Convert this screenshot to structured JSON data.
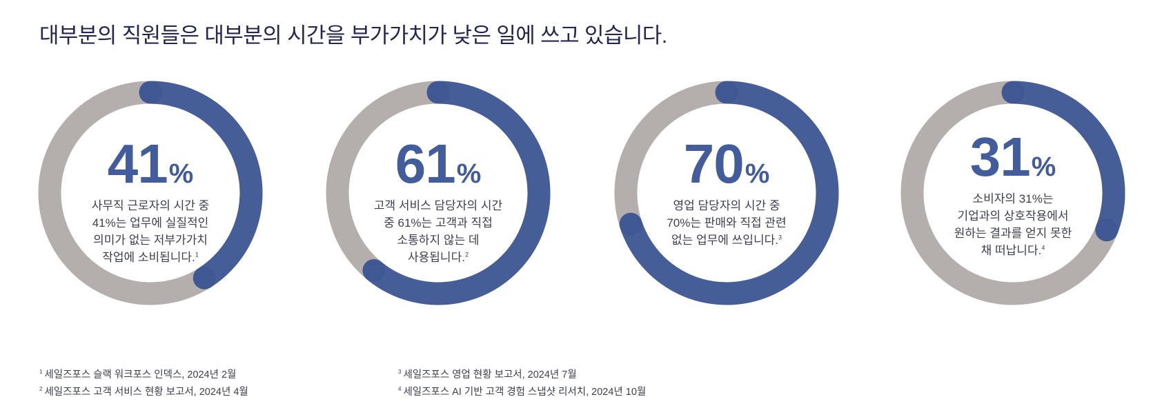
{
  "title": "대부분의 직원들은 대부분의 시간을 부가가치가 낮은 일에 쓰고 있습니다.",
  "colors": {
    "accent": "#465e97",
    "cap": "#3f5893",
    "track": "#b4afac",
    "title": "#232650",
    "text": "#3b3e52"
  },
  "chart_data": [
    {
      "type": "pie",
      "value": 41,
      "value_label": "41",
      "unit": "%",
      "description": "사무직 근로자의 시간 중\n41%는 업무에 실질적인\n의미가 없는 저부가가치\n작업에 소비됩니다.",
      "footnote_ref": "1"
    },
    {
      "type": "pie",
      "value": 61,
      "value_label": "61",
      "unit": "%",
      "description": "고객 서비스 담당자의 시간\n중 61%는 고객과 직접\n소통하지 않는 데\n사용됩니다.",
      "footnote_ref": "2"
    },
    {
      "type": "pie",
      "value": 70,
      "value_label": "70",
      "unit": "%",
      "description": "영업 담당자의 시간 중\n70%는 판매와 직접 관련\n없는 업무에 쓰입니다.",
      "footnote_ref": "3"
    },
    {
      "type": "pie",
      "value": 31,
      "value_label": "31",
      "unit": "%",
      "description": "소비자의 31%는\n기업과의 상호작용에서\n원하는 결과를 얻지 못한\n채 떠납니다.",
      "footnote_ref": "4"
    }
  ],
  "footnotes": [
    {
      "num": "1",
      "text": "세일즈포스 슬랙 워크포스 인덱스, 2024년 2월"
    },
    {
      "num": "2",
      "text": "세일즈포스 고객 서비스 현황 보고서, 2024년 4월"
    },
    {
      "num": "3",
      "text": "세일즈포스 영업 현황 보고서, 2024년 7월"
    },
    {
      "num": "4",
      "text": "세일즈포스 AI 기반 고객 경험 스냅샷 리서치, 2024년 10월"
    }
  ]
}
